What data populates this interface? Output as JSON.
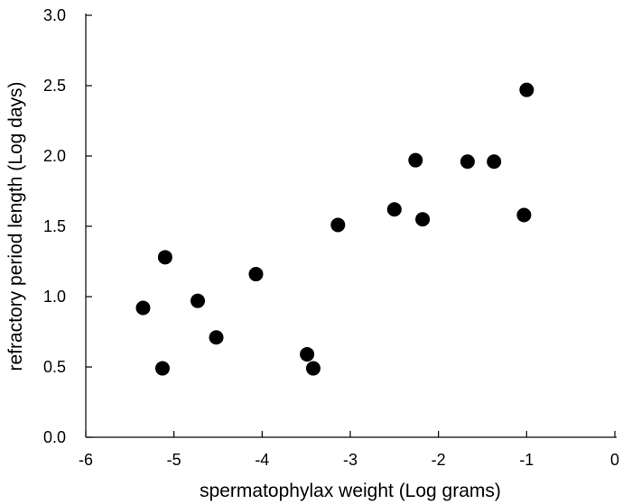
{
  "chart_data": {
    "type": "scatter",
    "title": "",
    "xlabel": "spermatophylax weight (Log grams)",
    "ylabel": "refractory period length (Log days)",
    "xlim": [
      -6,
      0
    ],
    "ylim": [
      0,
      3.0
    ],
    "x_ticks": [
      "-6",
      "-5",
      "-4",
      "-3",
      "-2",
      "-1",
      "0"
    ],
    "y_ticks": [
      "0.0",
      "0.5",
      "1.0",
      "1.5",
      "2.0",
      "2.5",
      "3.0"
    ],
    "grid": false,
    "legend": "none",
    "marker_color": "#000000",
    "series": [
      {
        "x": [
          -5.35,
          -5.13,
          -5.1,
          -4.73,
          -4.52,
          -4.07,
          -3.49,
          -3.42,
          -3.14,
          -2.5,
          -2.26,
          -2.18,
          -1.67,
          -1.37,
          -1.03,
          -1.0
        ],
        "y": [
          0.92,
          0.49,
          1.28,
          0.97,
          0.71,
          1.16,
          0.59,
          0.49,
          1.51,
          1.62,
          1.97,
          1.55,
          1.96,
          1.96,
          1.58,
          2.47
        ]
      }
    ]
  }
}
